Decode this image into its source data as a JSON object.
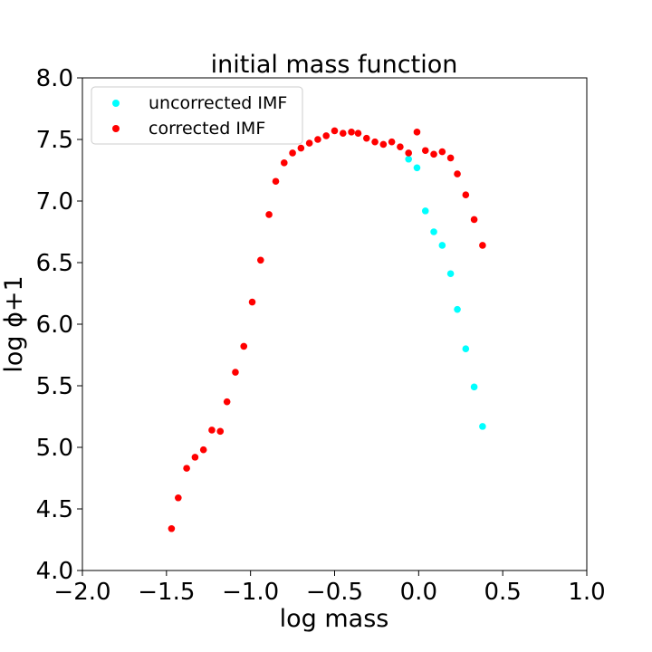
{
  "chart_data": {
    "type": "scatter",
    "title": "initial mass function",
    "xlabel": "log mass",
    "ylabel": "log ϕ+1",
    "xlim": [
      -2.0,
      1.0
    ],
    "ylim": [
      4.0,
      8.0
    ],
    "xticks": [
      "−2.0",
      "−1.5",
      "−1.0",
      "−0.5",
      "0.0",
      "0.5",
      "1.0"
    ],
    "yticks": [
      "4.0",
      "4.5",
      "5.0",
      "5.5",
      "6.0",
      "6.5",
      "7.0",
      "7.5",
      "8.0"
    ],
    "grid": false,
    "legend_position": "top-left",
    "series": [
      {
        "name": "uncorrected IMF",
        "color": "#00ffff",
        "points": [
          [
            -0.06,
            7.34
          ],
          [
            -0.01,
            7.27
          ],
          [
            0.04,
            6.92
          ],
          [
            0.09,
            6.75
          ],
          [
            0.14,
            6.64
          ],
          [
            0.19,
            6.41
          ],
          [
            0.23,
            6.12
          ],
          [
            0.28,
            5.8
          ],
          [
            0.33,
            5.49
          ],
          [
            0.38,
            5.17
          ]
        ]
      },
      {
        "name": "corrected IMF",
        "color": "#ff0000",
        "points": [
          [
            -1.47,
            4.34
          ],
          [
            -1.43,
            4.59
          ],
          [
            -1.38,
            4.83
          ],
          [
            -1.33,
            4.92
          ],
          [
            -1.28,
            4.98
          ],
          [
            -1.23,
            5.14
          ],
          [
            -1.18,
            5.13
          ],
          [
            -1.14,
            5.37
          ],
          [
            -1.09,
            5.61
          ],
          [
            -1.04,
            5.82
          ],
          [
            -0.99,
            6.18
          ],
          [
            -0.94,
            6.52
          ],
          [
            -0.89,
            6.89
          ],
          [
            -0.85,
            7.16
          ],
          [
            -0.8,
            7.31
          ],
          [
            -0.75,
            7.39
          ],
          [
            -0.7,
            7.43
          ],
          [
            -0.65,
            7.47
          ],
          [
            -0.6,
            7.5
          ],
          [
            -0.55,
            7.53
          ],
          [
            -0.5,
            7.57
          ],
          [
            -0.45,
            7.55
          ],
          [
            -0.4,
            7.56
          ],
          [
            -0.36,
            7.55
          ],
          [
            -0.31,
            7.51
          ],
          [
            -0.26,
            7.48
          ],
          [
            -0.21,
            7.46
          ],
          [
            -0.16,
            7.48
          ],
          [
            -0.11,
            7.44
          ],
          [
            -0.06,
            7.39
          ],
          [
            -0.01,
            7.56
          ],
          [
            0.04,
            7.41
          ],
          [
            0.09,
            7.38
          ],
          [
            0.14,
            7.4
          ],
          [
            0.19,
            7.35
          ],
          [
            0.23,
            7.22
          ],
          [
            0.28,
            7.05
          ],
          [
            0.33,
            6.85
          ],
          [
            0.38,
            6.64
          ]
        ]
      }
    ]
  }
}
